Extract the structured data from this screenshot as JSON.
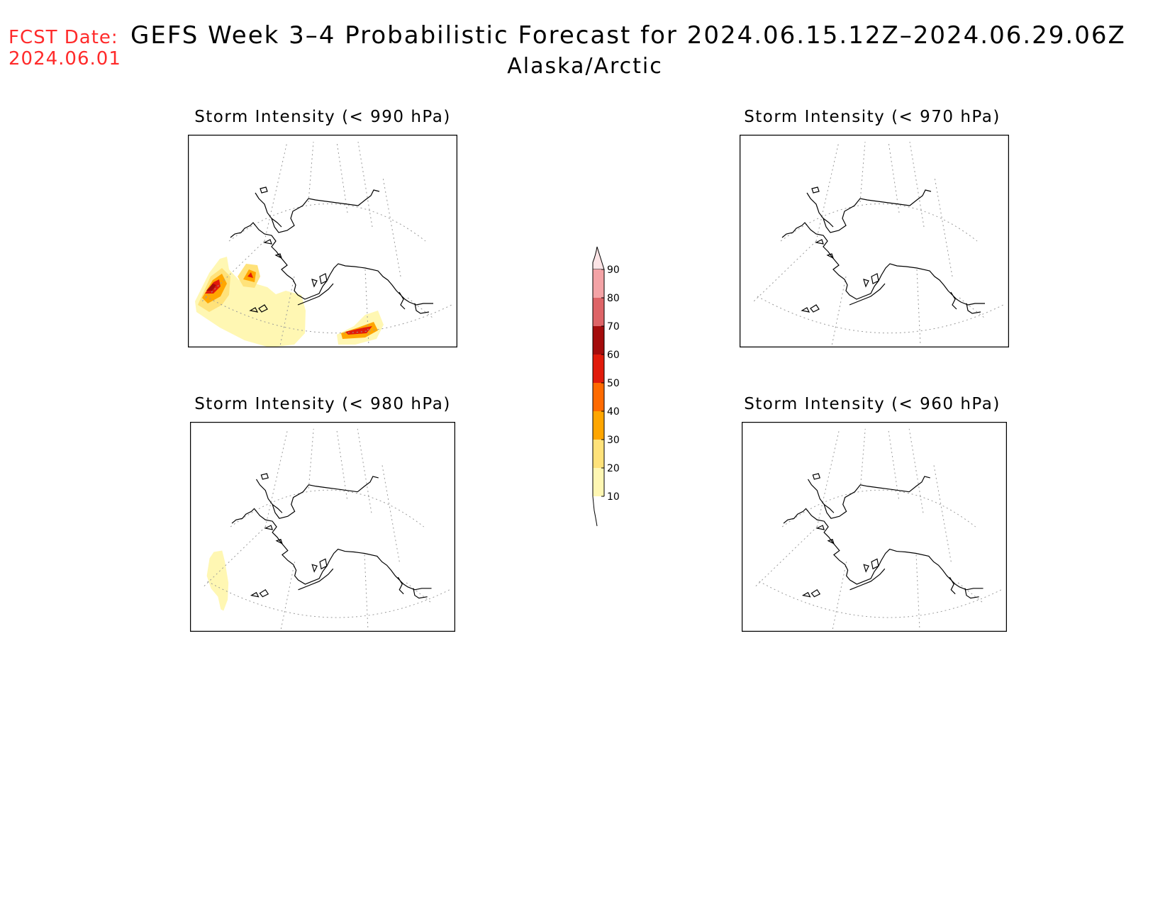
{
  "header": {
    "fcst_label": "FCST Date:",
    "fcst_date": "2024.06.01",
    "title": "GEFS Week 3–4 Probabilistic Forecast for 2024.06.15.12Z–2024.06.29.06Z",
    "region": "Alaska/Arctic"
  },
  "panels": [
    {
      "id": "p990",
      "title": "Storm Intensity (< 990 hPa)"
    },
    {
      "id": "p970",
      "title": "Storm Intensity (< 970 hPa)"
    },
    {
      "id": "p980",
      "title": "Storm Intensity (< 980 hPa)"
    },
    {
      "id": "p960",
      "title": "Storm Intensity (< 960 hPa)"
    }
  ],
  "colorbar": {
    "labels": [
      "90",
      "80",
      "70",
      "60",
      "50",
      "40",
      "30",
      "20",
      "10"
    ],
    "colors": {
      "gt90": "#fde4e6",
      "80-90": "#f4a3a6",
      "70-80": "#de6467",
      "60-70": "#a40c0c",
      "50-60": "#e11b0b",
      "40-50": "#ff6a00",
      "30-40": "#ffa600",
      "20-30": "#ffe27a",
      "10-20": "#fff7b3"
    }
  }
}
